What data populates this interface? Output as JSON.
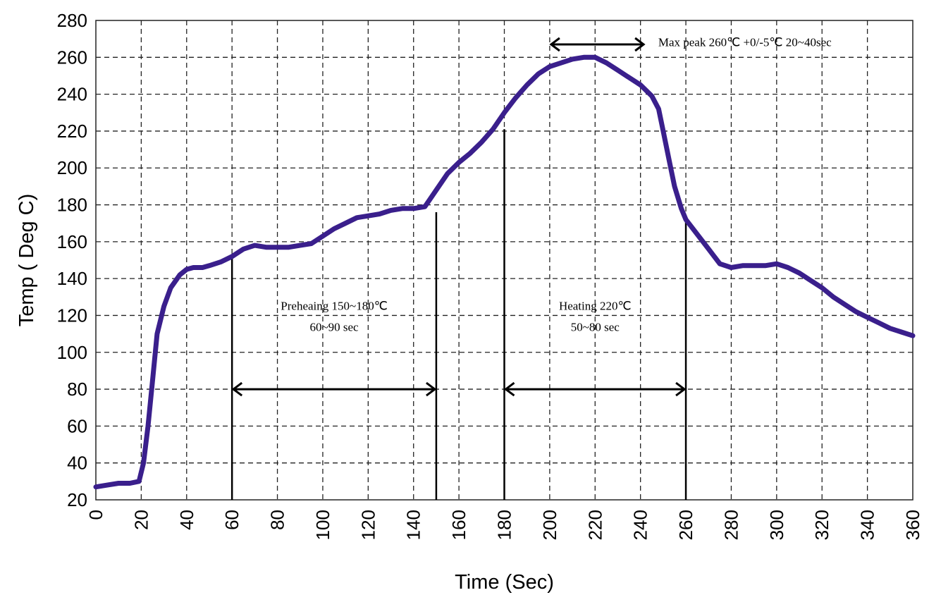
{
  "chart_data": {
    "type": "line",
    "xlabel": "Time (Sec)",
    "ylabel": "Temp ( Deg C)",
    "xlim": [
      0,
      360
    ],
    "ylim": [
      20,
      280
    ],
    "x_ticks": [
      "0",
      "20",
      "40",
      "60",
      "80",
      "100",
      "120",
      "140",
      "160",
      "180",
      "200",
      "220",
      "240",
      "260",
      "280",
      "300",
      "320",
      "340",
      "360"
    ],
    "y_ticks": [
      "20",
      "40",
      "60",
      "80",
      "100",
      "120",
      "140",
      "160",
      "180",
      "200",
      "220",
      "240",
      "260",
      "280"
    ],
    "grid": true,
    "series_color": "#3a1f8c",
    "series": [
      {
        "x": [
          0,
          5,
          10,
          15,
          19,
          21,
          23,
          25,
          27,
          30,
          33,
          37,
          40,
          43,
          47,
          50,
          55,
          60,
          65,
          70,
          75,
          80,
          85,
          90,
          95,
          100,
          105,
          110,
          115,
          120,
          125,
          130,
          135,
          140,
          145,
          150,
          155,
          160,
          165,
          170,
          175,
          180,
          185,
          190,
          195,
          200,
          205,
          210,
          215,
          220,
          225,
          230,
          235,
          240,
          245,
          248,
          250,
          253,
          255,
          258,
          260,
          265,
          270,
          275,
          280,
          285,
          290,
          295,
          300,
          305,
          310,
          315,
          320,
          325,
          330,
          335,
          340,
          345,
          350,
          355,
          360
        ],
        "y": [
          27,
          28,
          29,
          29,
          30,
          40,
          60,
          85,
          110,
          125,
          135,
          142,
          145,
          146,
          146,
          147,
          149,
          152,
          156,
          158,
          157,
          157,
          157,
          158,
          159,
          163,
          167,
          170,
          173,
          174,
          175,
          177,
          178,
          178,
          179,
          188,
          197,
          203,
          208,
          214,
          221,
          230,
          238,
          245,
          251,
          255,
          257,
          259,
          260,
          260,
          257,
          253,
          249,
          245,
          239,
          232,
          220,
          202,
          190,
          178,
          172,
          164,
          156,
          148,
          146,
          147,
          147,
          147,
          148,
          146,
          143,
          139,
          135,
          130,
          126,
          122,
          119,
          116,
          113,
          111,
          109
        ]
      }
    ],
    "annotations": [
      {
        "lines": [
          "Preheaing 150~180℃",
          "60~90 sec"
        ],
        "x": 105,
        "y": 123
      },
      {
        "lines": [
          "Heating 220℃",
          "50~80 sec"
        ],
        "x": 220,
        "y": 123
      },
      {
        "lines": [
          "Max peak 260℃ +0/-5℃  20~40sec"
        ],
        "x": 286,
        "y": 266
      }
    ],
    "vertical_markers": [
      {
        "x": 60,
        "y_from": 20,
        "y_to": 152
      },
      {
        "x": 150,
        "y_from": 20,
        "y_to": 176
      },
      {
        "x": 180,
        "y_from": 20,
        "y_to": 221
      },
      {
        "x": 260,
        "y_from": 20,
        "y_to": 174
      }
    ],
    "range_arrows": [
      {
        "x_from": 60,
        "x_to": 150,
        "y": 80
      },
      {
        "x_from": 180,
        "x_to": 260,
        "y": 80
      },
      {
        "x_from": 200,
        "x_to": 242,
        "y": 267
      }
    ]
  }
}
